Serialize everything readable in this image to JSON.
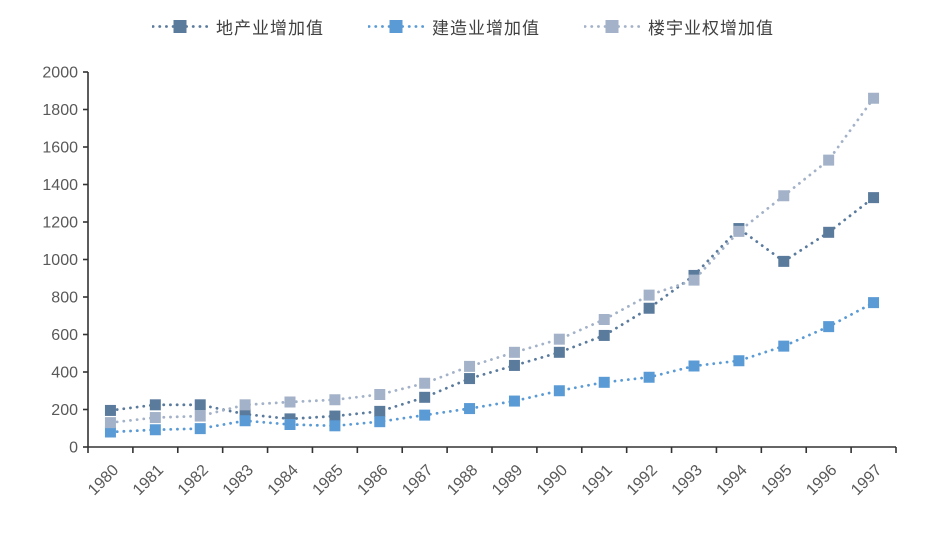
{
  "chart_data": {
    "type": "line",
    "title": "",
    "subtitle": "",
    "xlabel": "",
    "ylabel": "",
    "legend_position": "top",
    "grid": false,
    "line_style": "dotted",
    "marker": "square",
    "ylim": [
      0,
      2000
    ],
    "y_ticks": [
      0,
      200,
      400,
      600,
      800,
      1000,
      1200,
      1400,
      1600,
      1800,
      2000
    ],
    "categories": [
      "1980",
      "1981",
      "1982",
      "1983",
      "1984",
      "1985",
      "1986",
      "1987",
      "1988",
      "1989",
      "1990",
      "1991",
      "1992",
      "1993",
      "1994",
      "1995",
      "1996",
      "1997"
    ],
    "series": [
      {
        "name": "地产业增加值",
        "color": "#5B7B9D",
        "values": [
          195,
          225,
          225,
          175,
          150,
          165,
          190,
          265,
          365,
          435,
          505,
          595,
          740,
          915,
          1165,
          990,
          1145,
          1330
        ]
      },
      {
        "name": "建造业增加值",
        "color": "#5B9BD5",
        "values": [
          80,
          92,
          98,
          140,
          120,
          113,
          135,
          170,
          205,
          245,
          300,
          345,
          372,
          432,
          460,
          538,
          642,
          770
        ]
      },
      {
        "name": "楼宇业权增加值",
        "color": "#A3B2C8",
        "values": [
          130,
          157,
          165,
          225,
          240,
          252,
          280,
          340,
          430,
          505,
          575,
          680,
          810,
          890,
          1150,
          1340,
          1530,
          1860
        ]
      }
    ],
    "axis_color": "#333333",
    "tick_label_color": "#595959",
    "legend_label_color": "#404040"
  }
}
